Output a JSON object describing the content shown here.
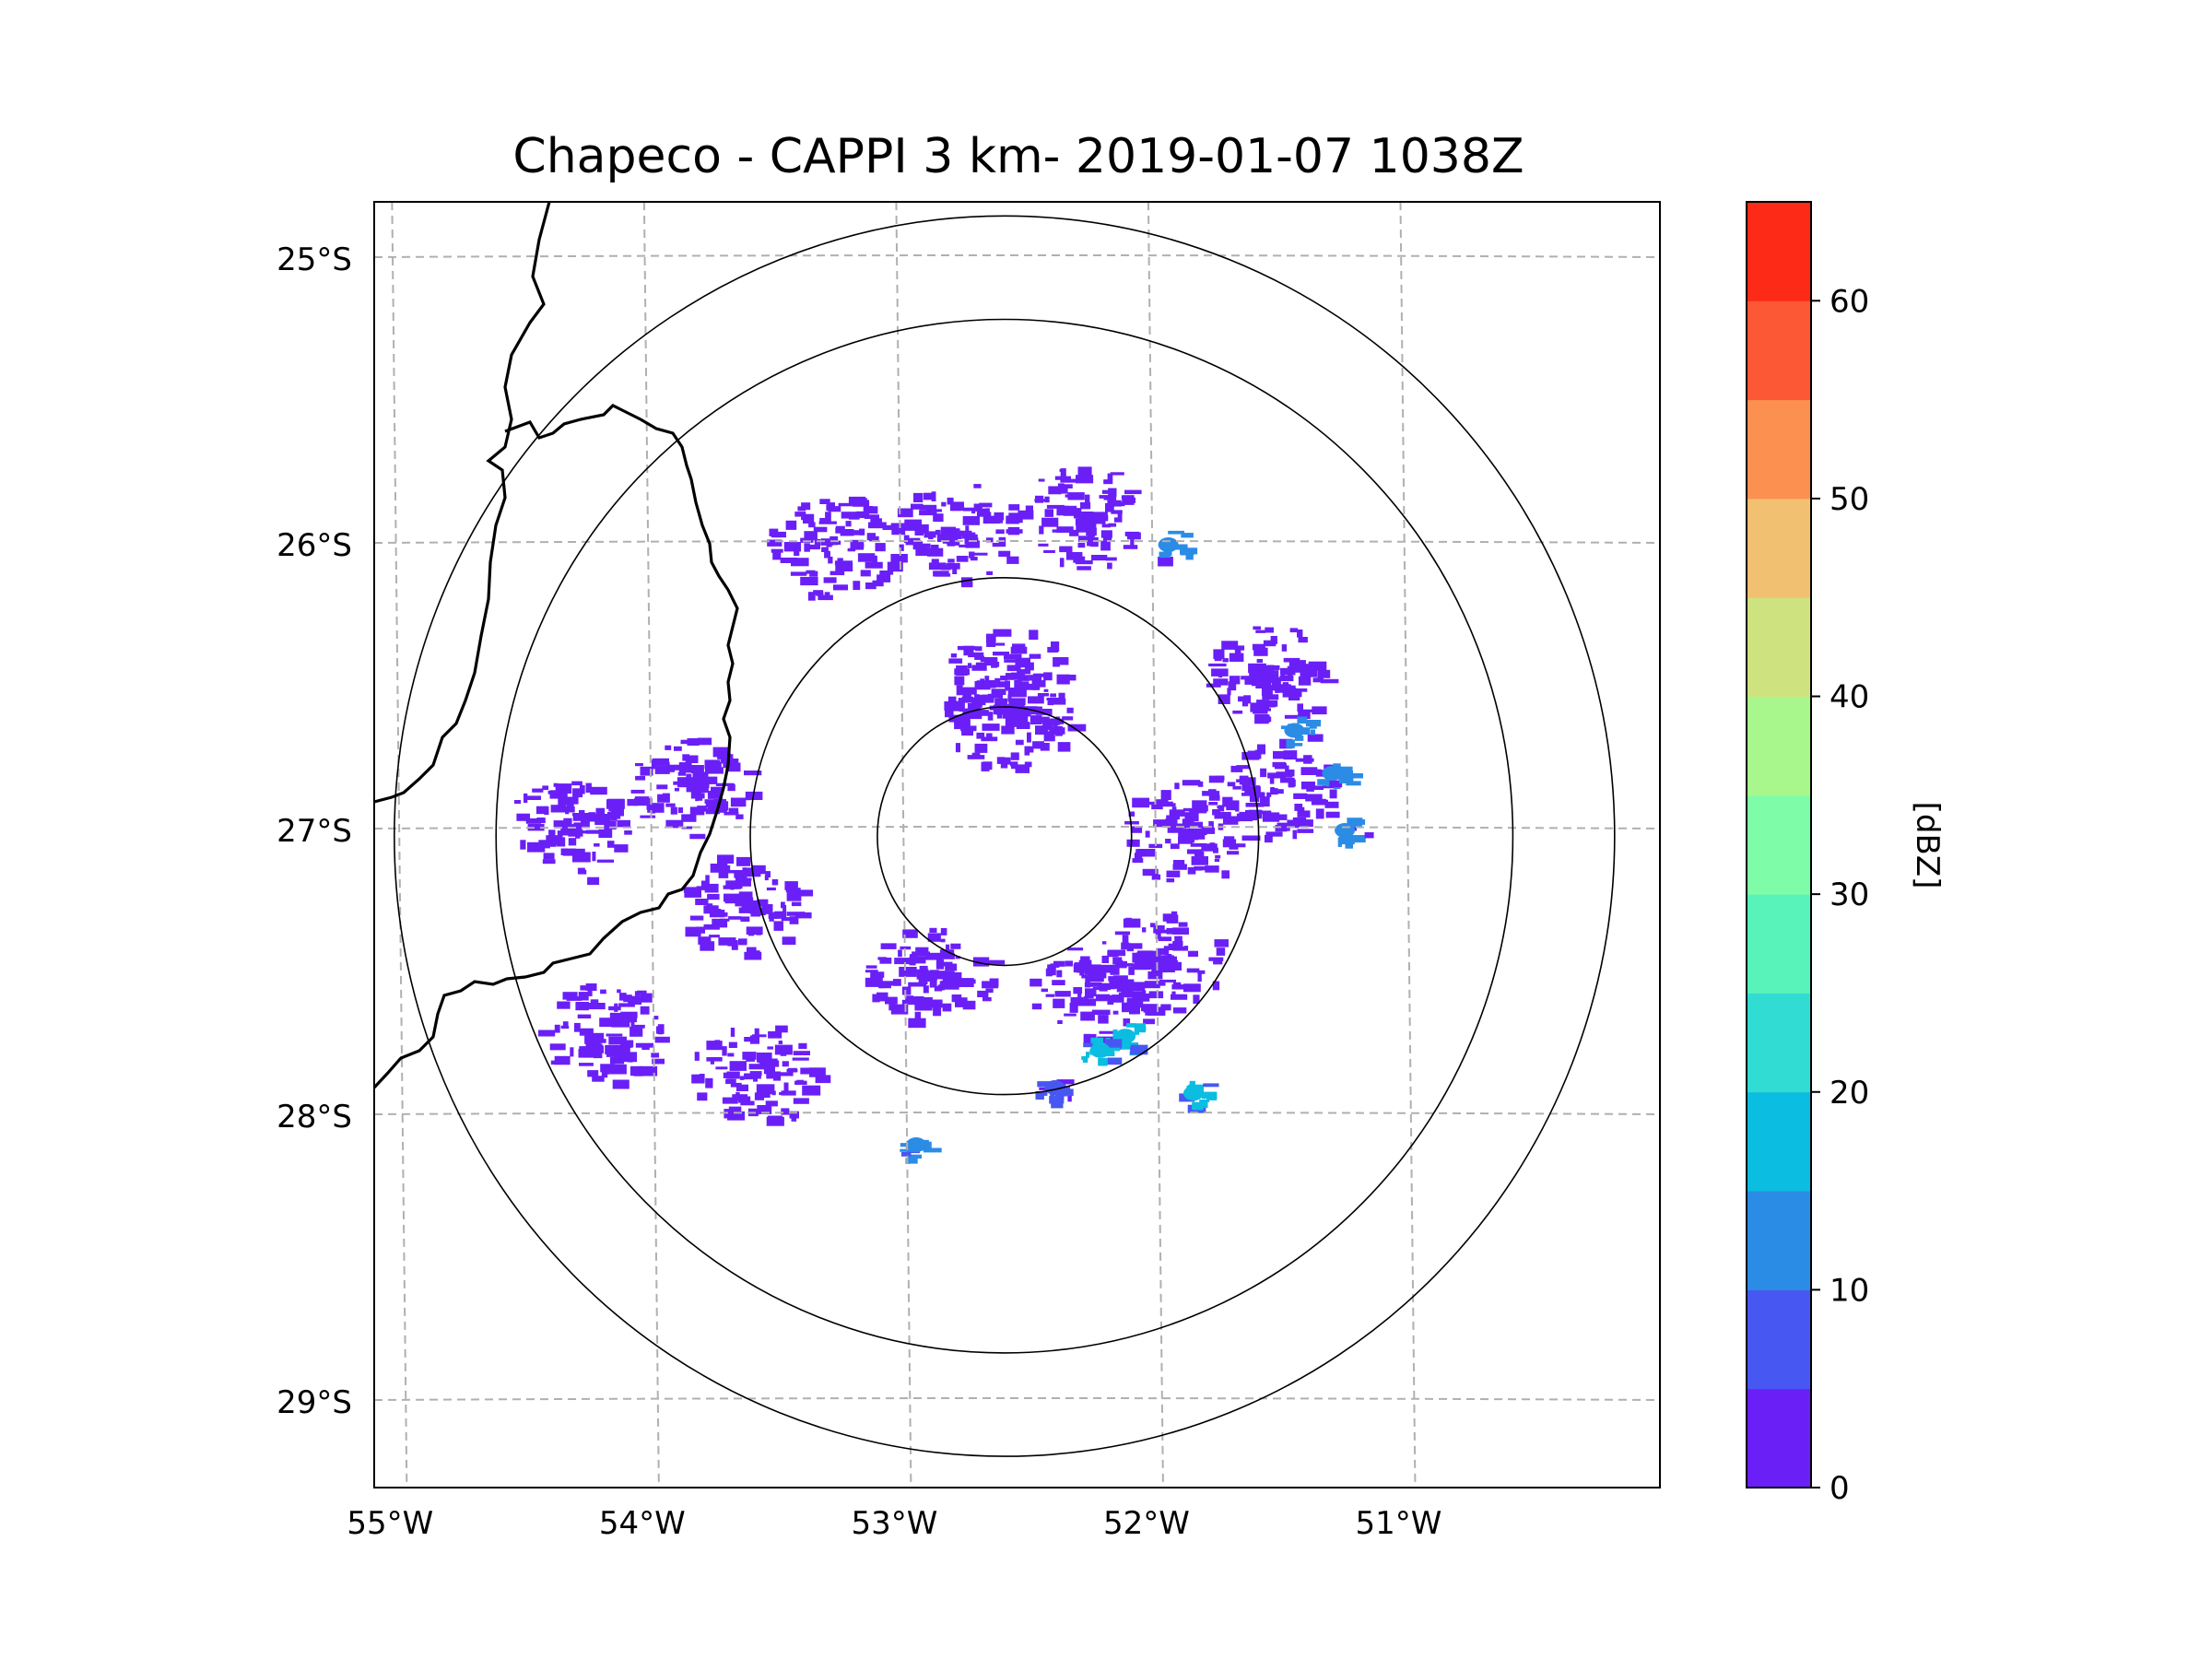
{
  "chart_data": {
    "type": "heatmap",
    "title": "Chapeco - CAPPI 3 km- 2019-01-07 1038Z",
    "xlabel": "",
    "ylabel": "",
    "lon_ticks": [
      -55,
      -54,
      -53,
      -52,
      -51
    ],
    "lon_tick_labels": [
      "55°W",
      "54°W",
      "53°W",
      "52°W",
      "51°W"
    ],
    "lat_ticks": [
      -25,
      -26,
      -27,
      -28,
      -29
    ],
    "lat_tick_labels": [
      "25°S",
      "26°S",
      "27°S",
      "28°S",
      "29°S"
    ],
    "xlim": [
      -55.1,
      -50.0
    ],
    "ylim": [
      -29.3,
      -24.8
    ],
    "radar_center": {
      "lon": -52.6,
      "lat": -27.02
    },
    "range_rings_km": [
      50,
      100,
      200,
      240
    ],
    "grid": true,
    "colorbar": {
      "label": "[dBZ]",
      "range": [
        0,
        65
      ],
      "step": 5,
      "tick_values": [
        0,
        10,
        20,
        30,
        40,
        50,
        60
      ],
      "tick_labels": [
        "0",
        "10",
        "20",
        "30",
        "40",
        "50",
        "60"
      ],
      "colors": [
        "#6b1ff7",
        "#4757f2",
        "#2b8ce6",
        "#0bbde0",
        "#31dcd2",
        "#57f3bb",
        "#7ffca8",
        "#a7f78c",
        "#cfe280",
        "#f2c071",
        "#fc9050",
        "#fc5835",
        "#fc2a17"
      ]
    },
    "echo_color_dominant": "#6b1ff7",
    "echo_cells": [
      {
        "lon": -54.35,
        "lat": -27.0,
        "dbz": 2
      },
      {
        "lon": -53.85,
        "lat": -26.85,
        "dbz": 2
      },
      {
        "lon": -53.65,
        "lat": -27.25,
        "dbz": 2
      },
      {
        "lon": -53.6,
        "lat": -27.85,
        "dbz": 2
      },
      {
        "lon": -54.2,
        "lat": -27.7,
        "dbz": 2
      },
      {
        "lon": -51.55,
        "lat": -26.45,
        "dbz": 2
      },
      {
        "lon": -51.55,
        "lat": -26.85,
        "dbz": 2
      },
      {
        "lon": -51.9,
        "lat": -27.0,
        "dbz": 2
      },
      {
        "lon": -52.0,
        "lat": -27.45,
        "dbz": 2
      },
      {
        "lon": -52.25,
        "lat": -27.55,
        "dbz": 2
      },
      {
        "lon": -52.6,
        "lat": -26.45,
        "dbz": 2
      },
      {
        "lon": -52.6,
        "lat": -26.6,
        "dbz": 2
      },
      {
        "lon": -52.9,
        "lat": -27.5,
        "dbz": 2
      },
      {
        "lon": -52.8,
        "lat": -25.95,
        "dbz": 2
      },
      {
        "lon": -53.3,
        "lat": -26.0,
        "dbz": 2
      },
      {
        "lon": -52.3,
        "lat": -25.9,
        "dbz": 2
      },
      {
        "lon": -51.45,
        "lat": -26.65,
        "dbz": 12
      },
      {
        "lon": -51.3,
        "lat": -26.8,
        "dbz": 10
      },
      {
        "lon": -52.12,
        "lat": -27.72,
        "dbz": 15
      },
      {
        "lon": -52.22,
        "lat": -27.77,
        "dbz": 16
      },
      {
        "lon": -51.85,
        "lat": -27.92,
        "dbz": 15
      },
      {
        "lon": -52.95,
        "lat": -28.1,
        "dbz": 14
      },
      {
        "lon": -52.4,
        "lat": -27.9,
        "dbz": 9
      },
      {
        "lon": -51.95,
        "lat": -26.0,
        "dbz": 11
      },
      {
        "lon": -51.25,
        "lat": -27.0,
        "dbz": 10
      }
    ]
  }
}
